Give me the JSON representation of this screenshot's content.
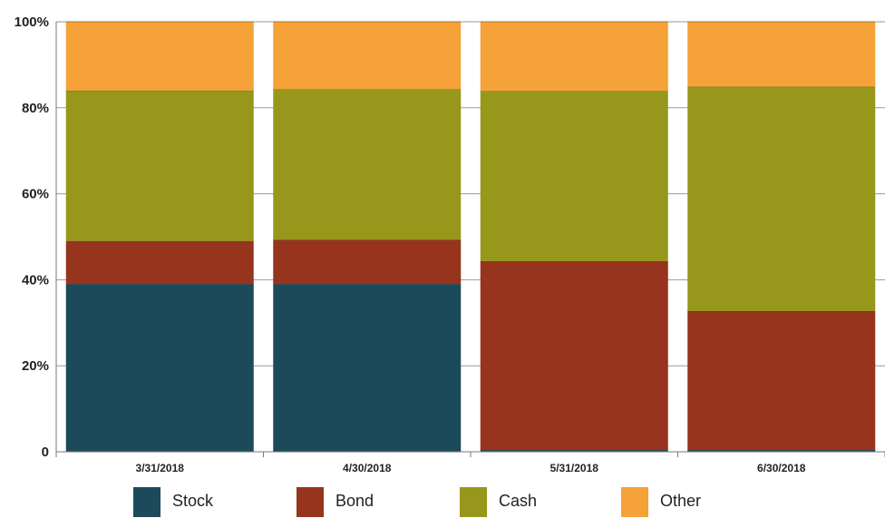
{
  "chart_data": {
    "type": "bar",
    "stacked": true,
    "categories": [
      "3/31/2018",
      "4/30/2018",
      "5/31/2018",
      "6/30/2018"
    ],
    "series": [
      {
        "name": "Stock",
        "color": "#1d4a5a",
        "values": [
          39,
          39,
          0.4,
          0.4
        ]
      },
      {
        "name": "Bond",
        "color": "#97341d",
        "values": [
          10,
          10.3,
          43.9,
          32.3
        ]
      },
      {
        "name": "Cash",
        "color": "#97971b",
        "values": [
          35,
          35,
          39.6,
          52.2
        ]
      },
      {
        "name": "Other",
        "color": "#f5a238",
        "values": [
          16,
          15.7,
          16.1,
          15.1
        ]
      }
    ],
    "y_ticks": [
      "0",
      "20%",
      "40%",
      "60%",
      "80%",
      "100%"
    ],
    "ylim": [
      0,
      100
    ],
    "grid": true,
    "legend_position": "bottom",
    "title": "",
    "xlabel": "",
    "ylabel": ""
  }
}
